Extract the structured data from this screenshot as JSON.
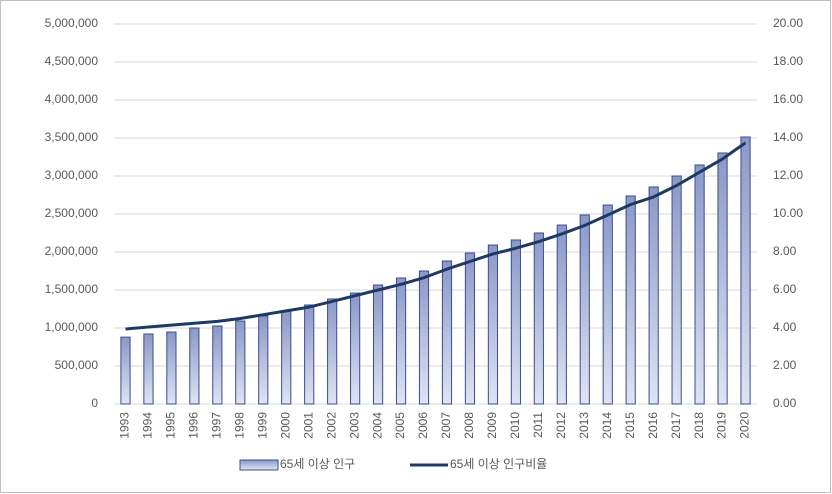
{
  "chart_data": {
    "type": "bar_line",
    "categories": [
      "1993",
      "1994",
      "1995",
      "1996",
      "1997",
      "1998",
      "1999",
      "2000",
      "2001",
      "2002",
      "2003",
      "2004",
      "2005",
      "2006",
      "2007",
      "2008",
      "2009",
      "2010",
      "2011",
      "2012",
      "2013",
      "2014",
      "2015",
      "2016",
      "2017",
      "2018",
      "2019",
      "2020"
    ],
    "series": [
      {
        "name": "65세 이상 인구",
        "type": "bar",
        "color": "#3a4e8c",
        "values": [
          880000,
          921000,
          947000,
          1000000,
          1026000,
          1092000,
          1158000,
          1224000,
          1303000,
          1382000,
          1460000,
          1566000,
          1658000,
          1750000,
          1882000,
          1987000,
          2092000,
          2158000,
          2250000,
          2355000,
          2487000,
          2618000,
          2737000,
          2855000,
          3000000,
          3145000,
          3303000,
          3513000
        ]
      },
      {
        "name": "65세 이상 인구비율",
        "type": "line",
        "axis": "y2",
        "color": "#1f3864",
        "values": [
          3.95,
          4.05,
          4.15,
          4.25,
          4.35,
          4.5,
          4.7,
          4.9,
          5.1,
          5.4,
          5.7,
          6.0,
          6.3,
          6.65,
          7.1,
          7.5,
          7.9,
          8.2,
          8.55,
          8.95,
          9.4,
          9.95,
          10.5,
          10.9,
          11.5,
          12.2,
          12.9,
          13.75
        ]
      }
    ],
    "ylim": [
      0,
      5000000
    ],
    "yticks": [
      0,
      {
        "value": 500000,
        "label": "500,000"
      },
      {
        "value": 1000000,
        "label": "1,000,000"
      },
      {
        "value": 1500000,
        "label": "1,500,000"
      },
      {
        "value": 2000000,
        "label": "2,000,000"
      },
      {
        "value": 2500000,
        "label": "2,500,000"
      },
      {
        "value": 3000000,
        "label": "3,000,000"
      },
      {
        "value": 3500000,
        "label": "3,500,000"
      },
      {
        "value": 4000000,
        "label": "4,000,000"
      },
      {
        "value": 4500000,
        "label": "4,500,000"
      },
      {
        "value": 5000000,
        "label": "5,000,000"
      }
    ],
    "y2lim": [
      0,
      20
    ],
    "y2ticks": [
      {
        "value": 0,
        "label": "0.00"
      },
      {
        "value": 2,
        "label": "2.00"
      },
      {
        "value": 4,
        "label": "4.00"
      },
      {
        "value": 6,
        "label": "6.00"
      },
      {
        "value": 8,
        "label": "8.00"
      },
      {
        "value": 10,
        "label": "10.00"
      },
      {
        "value": 12,
        "label": "12.00"
      },
      {
        "value": 14,
        "label": "14.00"
      },
      {
        "value": 16,
        "label": "16.00"
      },
      {
        "value": 18,
        "label": "18.00"
      },
      {
        "value": 20,
        "label": "20.00"
      }
    ],
    "grid": true,
    "legend": "bottom"
  }
}
